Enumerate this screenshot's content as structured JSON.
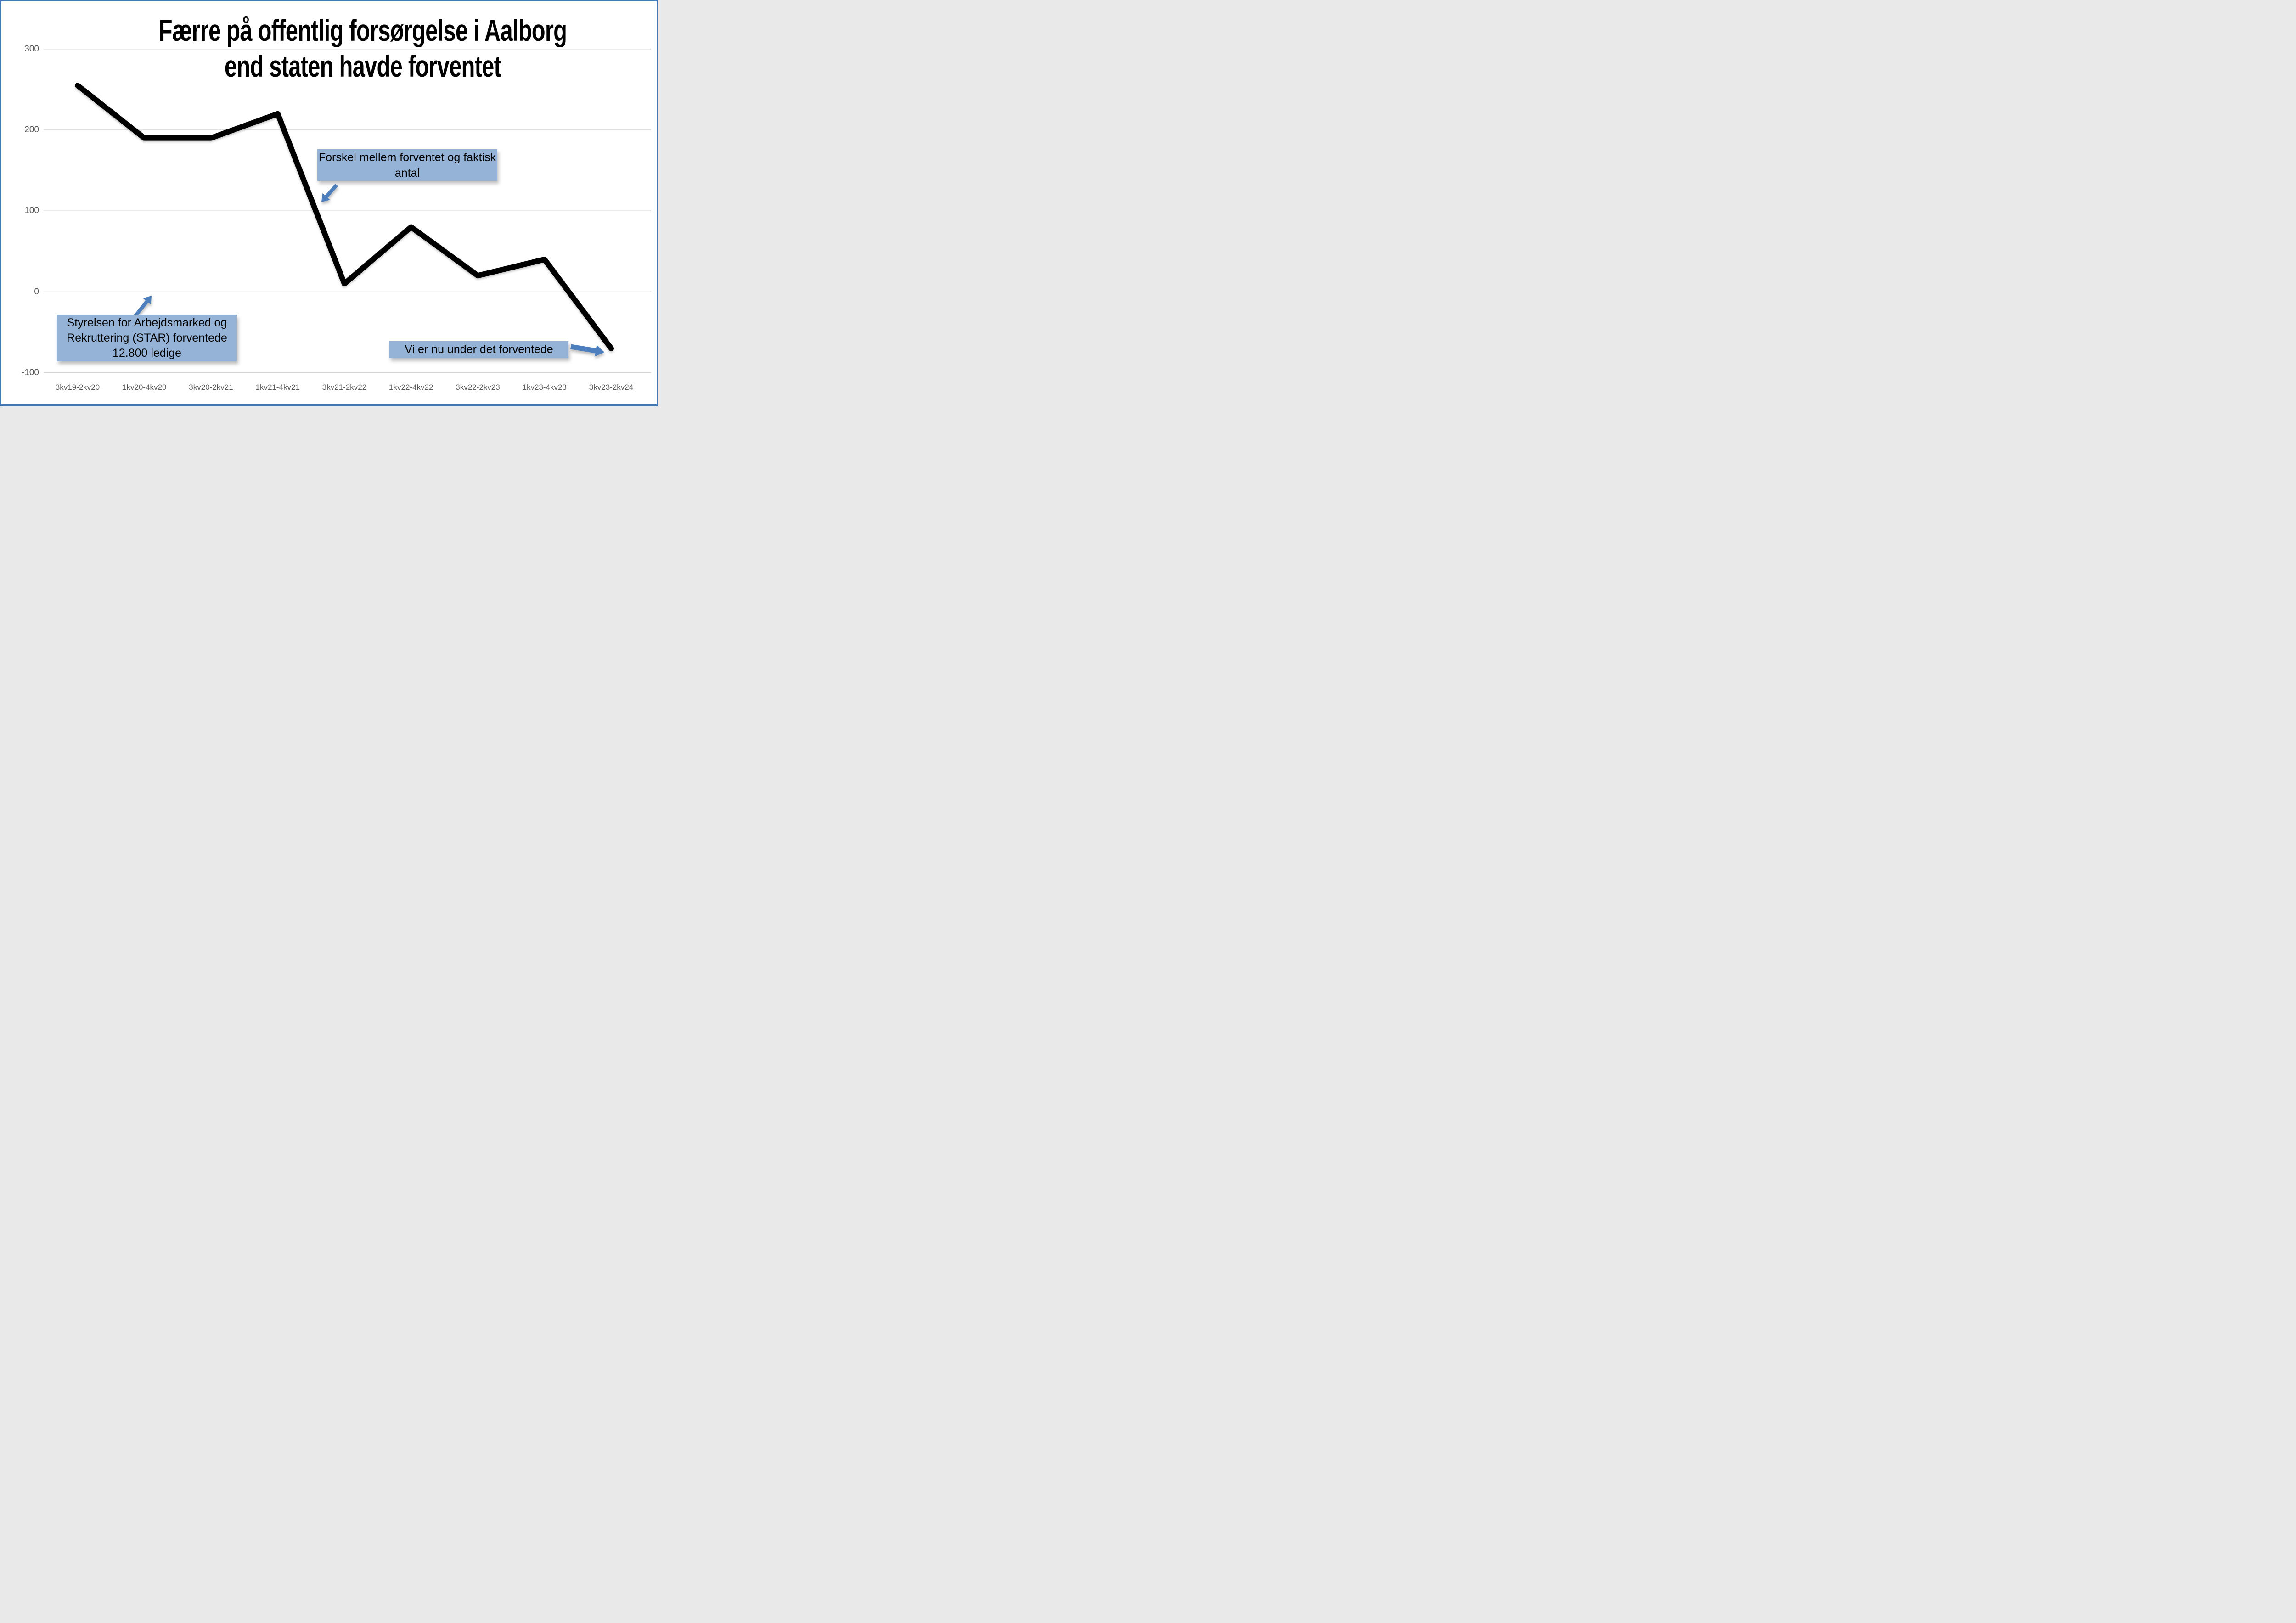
{
  "title": {
    "line1": "Færre på offentlig forsørgelse i Aalborg",
    "line2": "end staten havde forventet"
  },
  "chart_data": {
    "type": "line",
    "title": "Færre på offentlig forsørgelse i Aalborg end staten havde forventet",
    "categories": [
      "3kv19-2kv20",
      "1kv20-4kv20",
      "3kv20-2kv21",
      "1kv21-4kv21",
      "3kv21-2kv22",
      "1kv22-4kv22",
      "3kv22-2kv23",
      "1kv23-4kv23",
      "3kv23-2kv24"
    ],
    "series": [
      {
        "name": "Forskel mellem forventet og faktisk antal",
        "color": "#000000",
        "values": [
          255,
          190,
          190,
          220,
          10,
          80,
          20,
          40,
          -70
        ]
      }
    ],
    "reference_line": {
      "value": 0,
      "color": "#EA1B23"
    },
    "xlabel": "",
    "ylabel": "",
    "ylim": [
      -100,
      300
    ],
    "yticks": [
      300,
      200,
      100,
      0,
      -100
    ],
    "grid": "horizontal",
    "legend": "none"
  },
  "annotations": {
    "forskel": {
      "text": "Forskel mellem forventet og faktisk antal"
    },
    "star": {
      "text": "Styrelsen for Arbejdsmarked og Rekruttering (STAR) forventede 12.800 ledige"
    },
    "under": {
      "text": "Vi er nu under det forventede"
    }
  },
  "colors": {
    "frame_border": "#4577B5",
    "background": "#FFFFFF",
    "data_line": "#000000",
    "zero_line": "#EA1B23",
    "gridline": "#D6D6D6",
    "tick_text": "#595959",
    "annotation_fill": "#95B3D7",
    "arrow_fill": "#4E7EBD"
  }
}
